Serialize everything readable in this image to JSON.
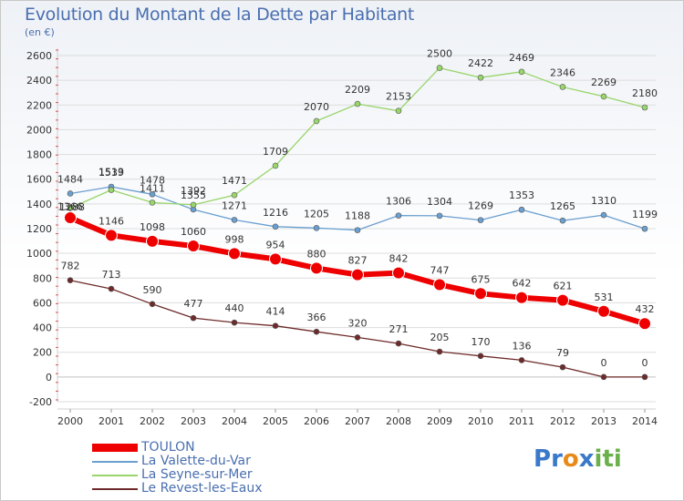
{
  "header": {
    "title": "Evolution du Montant de la Dette par Habitant",
    "subtitle": "(en €)"
  },
  "logo": {
    "letters": [
      "P",
      "r",
      "o",
      "x",
      "i",
      "t",
      "i"
    ],
    "colors": [
      "#3a78c9",
      "#3a78c9",
      "#e88a1a",
      "#3a78c9",
      "#6ab04c",
      "#6ab04c",
      "#6ab04c"
    ]
  },
  "chart_data": {
    "type": "line",
    "title": "Evolution du Montant de la Dette par Habitant",
    "subtitle": "(en €)",
    "xlabel": "",
    "ylabel": "",
    "x": [
      "2000",
      "2001",
      "2002",
      "2003",
      "2004",
      "2005",
      "2006",
      "2007",
      "2008",
      "2009",
      "2010",
      "2011",
      "2012",
      "2013",
      "2014"
    ],
    "ylim": [
      -200,
      2600
    ],
    "yticks": [
      -200,
      0,
      200,
      400,
      600,
      800,
      1000,
      1200,
      1400,
      1600,
      1800,
      2000,
      2200,
      2400,
      2600
    ],
    "grid": true,
    "legend_position": "bottom-left",
    "series": [
      {
        "name": "TOULON",
        "color": "#ee0000",
        "values": [
          1288,
          1146,
          1098,
          1060,
          998,
          954,
          880,
          827,
          842,
          747,
          675,
          642,
          621,
          531,
          432
        ]
      },
      {
        "name": "La Valette-du-Var",
        "color": "#6a9fd0",
        "values": [
          1484,
          1539,
          1478,
          1355,
          1271,
          1216,
          1205,
          1188,
          1306,
          1304,
          1269,
          1353,
          1265,
          1310,
          1199
        ]
      },
      {
        "name": "La Seyne-sur-Mer",
        "color": "#98d56a",
        "values": [
          1366,
          1513,
          1411,
          1392,
          1471,
          1709,
          2070,
          2209,
          2153,
          2500,
          2422,
          2469,
          2346,
          2269,
          2180
        ]
      },
      {
        "name": "Le Revest-les-Eaux",
        "color": "#6e2a2a",
        "values": [
          782,
          713,
          590,
          477,
          440,
          414,
          366,
          320,
          271,
          205,
          170,
          136,
          79,
          0,
          0
        ]
      }
    ]
  }
}
